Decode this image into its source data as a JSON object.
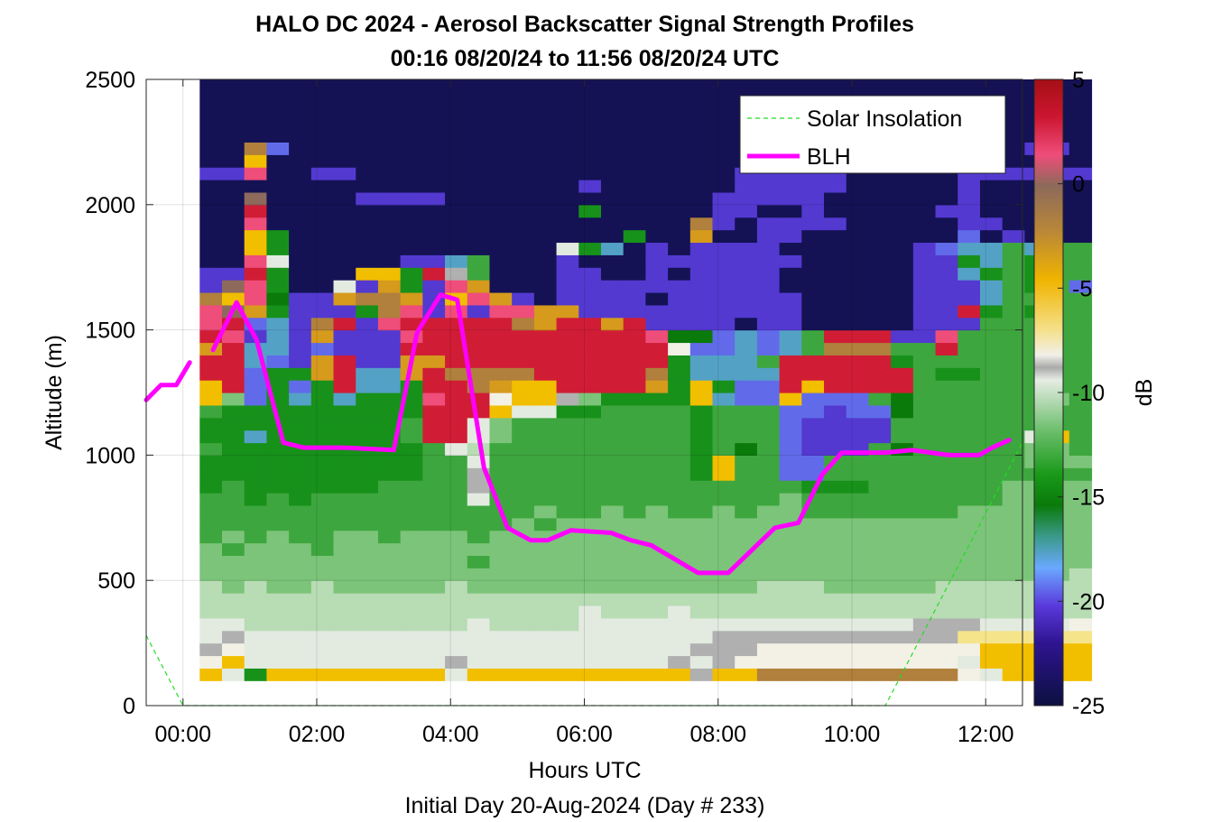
{
  "chart_data": {
    "type": "heatmap",
    "title": "HALO DC 2024 - Aerosol Backscatter Signal Strength Profiles",
    "subtitle": "00:16 08/20/24 to 11:56 08/20/24  UTC",
    "xlabel": "Hours UTC",
    "xlabel_note": "Initial Day 20-Aug-2024 (Day # 233)",
    "ylabel": "Altitude (m)",
    "colorbar_label": "dB",
    "x_range_hours": [
      -0.55,
      12.55
    ],
    "y_range_m": [
      0,
      2500
    ],
    "x_ticks": [
      0,
      2,
      4,
      6,
      8,
      10,
      12
    ],
    "x_tick_labels": [
      "00:00",
      "02:00",
      "04:00",
      "06:00",
      "08:00",
      "10:00",
      "12:00"
    ],
    "y_ticks": [
      0,
      500,
      1000,
      1500,
      2000,
      2500
    ],
    "y_tick_labels": [
      "0",
      "500",
      "1000",
      "1500",
      "2000",
      "2500"
    ],
    "colorbar_ticks": [
      5,
      0,
      -5,
      -10,
      -15,
      -20,
      -25
    ],
    "colorbar_tick_labels": [
      "5",
      "0",
      "-5",
      "-10",
      "-15",
      "-20",
      "-25"
    ],
    "color_range_db": [
      -25,
      5
    ],
    "grid": true,
    "legend_position": "top-right",
    "legend": [
      "Solar Insolation",
      "BLH"
    ],
    "blh_color": "#ff00ff",
    "insolation_color": "#22dd22",
    "heatmap": {
      "x_start_hours": 0.25,
      "x_step_hours": 0.3333,
      "y_start_m": 100,
      "y_step_m": 50,
      "note": "rows listed bottom (100-150 m) to top (2450-2500 m); each string has one character per time column; legend: key maps letters to dB",
      "key": {
        "Y": -6,
        "Q": -3,
        "W": -9,
        "V": -11,
        "U": -12,
        "L": -13,
        "M": -14.5,
        "G": -16,
        "D": -17,
        "T": -19,
        "S": -20.5,
        "P": -21.5,
        "I": -23,
        "N": -24.5,
        "R": 3,
        "K": 1,
        "O": 0,
        "B": -2,
        "X": -10,
        "Z": -8
      },
      "rows": [
        "YVGYYYYYYYYVYYYYYYYYYYXYYBBBBBBBBBWVYYYY",
        "WYVVVVVVVVVXVVVVVVVVVXVXWWWWWWWWWWVYYYYY",
        "XWVVVVVVVVVVVVVVVVVVVVXXXWWWWWWWWWWYYYYY",
        "VXVVVVVVVVVVVVVVVVVVVVVXXXXXXXXXXXZZZZZZ",
        "VVUUUUUUUUUUVUUUUVVVVVVVVVVVVVVVXXXVVVVW",
        "UUUUUUUUUUUUUUUUUVUUUVUUUUUUUUUUUUUUUUUU",
        "UUUUUUUUUUUUUUUUUUUUUUUUUUUUUUUUUUUUUUUU",
        "ULULLULLLLLULLLLLLLLLLLLLUUULLLLLUUUUUUU",
        "LLLLLLLLLLLLLLLLLLLLLLLLLLLLLLLLLLLLLLLU",
        "LLLLLLLLLLLLMLLLLLLLLLLLLLLLLLLLLLLLLLLL",
        "LMLLLMLLLLLLLLLLLLLLLLLLLLLLLLLLLLLLLLLL",
        "MLMLMMLLMLLLMLLLLLLLLLLLLLLLLLLLLLLLLLLL",
        "MMMMMMMMMMMMMMLMLLLLLLLLLLLLLLLLLLLLLLLL",
        "MMMMMMMMMMMMMMMLMMLMLMMLMLLMMMMMMMLLLLLL",
        "MMGMGMMMMMMMVMMMMMMMMMMMMMLMMMMMMMMMLLLL",
        "GMGGGGGGMMMMXMMMMMMMMMMMMMMGGGMMMMMMLLLL",
        "GGGGGGGGGGMMXMMMMMMMMMGYMMSSMMMMMMMMMMMM",
        "GGGGGGGGGGMMVMMMMMMMMMGYMMSSMMMMMMMMMLLL",
        "MGGGGGGGGGMVUMMMMMMMMMGMDMSPPPMDMMMMMLLM",
        "GGTGGGGGGMRRVLMMMMMMMMGMMMSPPPPMMMMMMVYM",
        "GGGGGGGGGMRRVLMMMMMMMMGMMMSPPPPMMMMMMMMM",
        "MGGGGGGGGGRRRYVVGGMMMMGMMMSSPSSDMMMMMMMM",
        "YLSGTGTGGGKRRWYYXLGGGGYTSSYSSSMDMMMMMMLM",
        "YRSGSGRTTGRRBQYYRRRRQGYGSSRYRRRRMMMMMMMM",
        "RRSGGQRTTQRBBBBRRRRRBGTTTTRRRRRRMGGMMMMM",
        "RRTSPQRPPQQRRRRRRRRRRGTTTMRRRRRGMMMMMMMM",
        "QRTTPSPPPRRRRRRRRRRRRWSSTSTMBBBMMRMMMMMM",
        "RKPTPQPPPKRRRRRRRRRRKDDSTSTMRRRPPKMMMMMM",
        "KRSTPBRPKRRRRRBQRRQRPPPPNPPNNNNNPPPMMMMM",
        "KOQGPPPGBKPKPKKQQPPPPPPPPPPNNNNNPPRGMGMM",
        "BYKDPPQBBQPYKQPNPPPPNPPPPPPNNNNNPPPTMMMM",
        "POKGNNVPQGPKQNNNPPPPPPPPPPNNNNNNPPPTMGMS",
        "PPRGNNNYYGRXMNNNPPNNPNPPPPNNNNNNPPTGMGMM",
        "NNKVNNNNNPPTMNNNPNNNPPPPPPPNNNNNPPGTMGMM",
        "NNYGNNNNNNNNNNNNVGTNPNPPPPNNNNNNPSTTMTMM",
        "NNYGNNNNNNNNNNNNNNNGNNQNNPPNNNNNNNSNPNNN",
        "NNKNNNNNNNNNNNNNNNNNNNBPNPPPPNNNNNPPNNNN",
        "NNRNNNNNNNNNNNNNNGNNNNNPPNNPNNNNNPPNNNNN",
        "NNONNNNPPPPNNNNNNNNNNNNPPPPPNNNNNNPNNNNN",
        "NNNNNNNNNNNNNNNNNPNNNNNNPPPPPNNNNNPNNNNN",
        "PPKNNPPNNNNNNNNNNNNNNNNNPPPPPNNNNNPPPPPP",
        "NNYNNNNNNNNNNNNNNNNNNNNNNNNNNNNNNNNNNNNN",
        "NNBSNNNNNNNNNNNNNNNNNNNNNNNNNNNNNNNNNPPN",
        "NNNNNNNNNNNNNNNNNNNNNNNNNNNNNNNNNNNNNNNN",
        "NNNNNNNNNNNNNNNNNNNNNNNNNNNNNNNNNNNNNNNN",
        "NNNNNNNNNNNNNNNNNNNNNNNNNNNNNNNNNNNNNNNN",
        "NNNNNNNNNNNNNNNNNNNNNNNNNNNNNNNNNNNNNNNN",
        "NNNNNNNNNNNNNNNNNNNNNNNNNNNNNNNNNNNNNNNN"
      ]
    },
    "blh_series": {
      "name": "BLH",
      "x_hours": [
        -0.55,
        -0.33,
        -0.1,
        0.1,
        0.45,
        0.8,
        1.1,
        1.5,
        1.8,
        2.4,
        3.15,
        3.5,
        3.85,
        4.1,
        4.5,
        4.85,
        5.2,
        5.45,
        5.8,
        6.4,
        6.7,
        7.0,
        7.7,
        8.15,
        8.85,
        9.2,
        9.55,
        9.85,
        10.5,
        10.9,
        11.45,
        11.9,
        12.1,
        12.35
      ],
      "y_m": [
        1220,
        1280,
        1280,
        1370,
        1420,
        1610,
        1460,
        1050,
        1030,
        1030,
        1020,
        1490,
        1640,
        1620,
        950,
        710,
        660,
        660,
        700,
        690,
        660,
        640,
        530,
        530,
        710,
        730,
        920,
        1010,
        1010,
        1020,
        1000,
        1000,
        1030,
        1060
      ],
      "gap_after_index": 3
    },
    "solar_insolation_series": {
      "name": "Solar Insolation",
      "x_hours": [
        -0.55,
        0.0,
        10.5,
        12.55
      ],
      "y_m": [
        280,
        0,
        0,
        1050
      ]
    }
  }
}
